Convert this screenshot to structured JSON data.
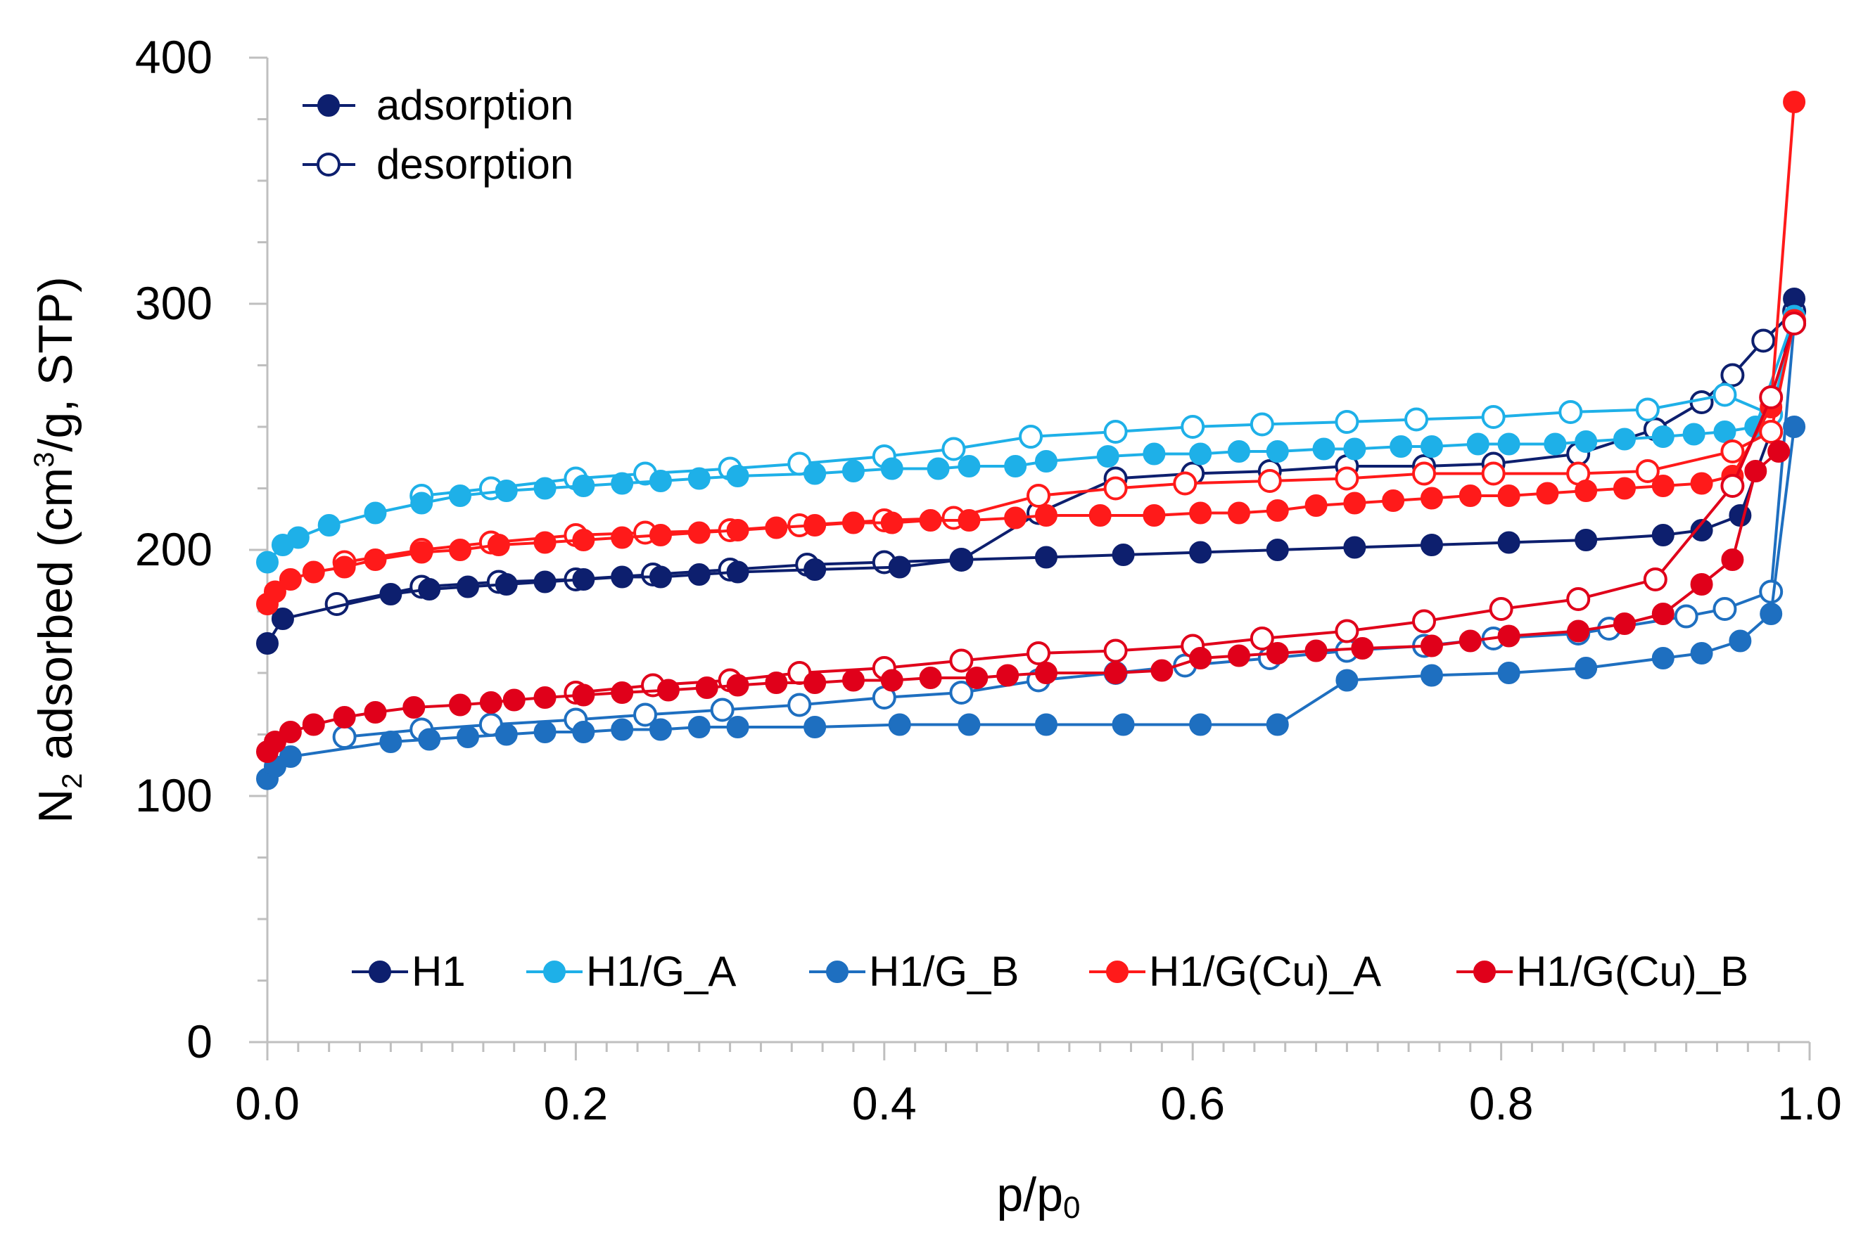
{
  "chart_data": {
    "type": "scatter",
    "xlabel": "p/p0",
    "ylabel": "N2 adsorbed (cm3/g, STP)",
    "ylabel_parts": {
      "n": "N",
      "sub": "2",
      "mid": " adsorbed (cm",
      "sup": "3",
      "end": "/g, STP)"
    },
    "xlabel_parts": {
      "main": "p/p",
      "sub": "0"
    },
    "xlim": [
      0,
      1.0
    ],
    "ylim": [
      0,
      400
    ],
    "x_ticks": [
      "0.0",
      "0.2",
      "0.4",
      "0.6",
      "0.8",
      "1.0"
    ],
    "y_ticks": [
      "0",
      "100",
      "200",
      "300",
      "400"
    ],
    "grid": false,
    "legend_branch": [
      {
        "label": "adsorption",
        "marker": "filled"
      },
      {
        "label": "desorption",
        "marker": "open"
      }
    ],
    "series": [
      {
        "name": "H1",
        "color": "#0D1F6E",
        "adsorption": [
          [
            0.0,
            162
          ],
          [
            0.01,
            172
          ],
          [
            0.08,
            182
          ],
          [
            0.105,
            184
          ],
          [
            0.13,
            185
          ],
          [
            0.155,
            186
          ],
          [
            0.18,
            187
          ],
          [
            0.205,
            188
          ],
          [
            0.23,
            189
          ],
          [
            0.255,
            189
          ],
          [
            0.28,
            190
          ],
          [
            0.305,
            191
          ],
          [
            0.355,
            192
          ],
          [
            0.41,
            193
          ],
          [
            0.45,
            196
          ],
          [
            0.505,
            197
          ],
          [
            0.555,
            198
          ],
          [
            0.605,
            199
          ],
          [
            0.655,
            200
          ],
          [
            0.705,
            201
          ],
          [
            0.755,
            202
          ],
          [
            0.805,
            203
          ],
          [
            0.855,
            204
          ],
          [
            0.905,
            206
          ],
          [
            0.93,
            208
          ],
          [
            0.955,
            214
          ],
          [
            0.975,
            248
          ],
          [
            0.99,
            302
          ]
        ],
        "desorption": [
          [
            0.99,
            297
          ],
          [
            0.97,
            285
          ],
          [
            0.95,
            271
          ],
          [
            0.93,
            260
          ],
          [
            0.9,
            249
          ],
          [
            0.85,
            239
          ],
          [
            0.795,
            235
          ],
          [
            0.75,
            234
          ],
          [
            0.7,
            234
          ],
          [
            0.65,
            232
          ],
          [
            0.6,
            231
          ],
          [
            0.55,
            229
          ],
          [
            0.5,
            215
          ],
          [
            0.45,
            196
          ],
          [
            0.4,
            195
          ],
          [
            0.35,
            194
          ],
          [
            0.3,
            192
          ],
          [
            0.25,
            190
          ],
          [
            0.2,
            188
          ],
          [
            0.15,
            187
          ],
          [
            0.1,
            185
          ],
          [
            0.045,
            178
          ]
        ]
      },
      {
        "name": "H1/G_A",
        "color": "#1EB0E8",
        "adsorption": [
          [
            0.0,
            195
          ],
          [
            0.01,
            202
          ],
          [
            0.02,
            205
          ],
          [
            0.04,
            210
          ],
          [
            0.07,
            215
          ],
          [
            0.1,
            219
          ],
          [
            0.125,
            222
          ],
          [
            0.155,
            224
          ],
          [
            0.18,
            225
          ],
          [
            0.205,
            226
          ],
          [
            0.23,
            227
          ],
          [
            0.255,
            228
          ],
          [
            0.28,
            229
          ],
          [
            0.305,
            230
          ],
          [
            0.355,
            231
          ],
          [
            0.38,
            232
          ],
          [
            0.405,
            233
          ],
          [
            0.435,
            233
          ],
          [
            0.455,
            234
          ],
          [
            0.485,
            234
          ],
          [
            0.505,
            236
          ],
          [
            0.545,
            238
          ],
          [
            0.575,
            239
          ],
          [
            0.605,
            239
          ],
          [
            0.63,
            240
          ],
          [
            0.655,
            240
          ],
          [
            0.685,
            241
          ],
          [
            0.705,
            241
          ],
          [
            0.735,
            242
          ],
          [
            0.755,
            242
          ],
          [
            0.785,
            243
          ],
          [
            0.805,
            243
          ],
          [
            0.835,
            243
          ],
          [
            0.855,
            244
          ],
          [
            0.88,
            245
          ],
          [
            0.905,
            246
          ],
          [
            0.925,
            247
          ],
          [
            0.945,
            248
          ],
          [
            0.965,
            250
          ],
          [
            0.99,
            295
          ]
        ],
        "desorption": [
          [
            0.99,
            293
          ],
          [
            0.975,
            255
          ],
          [
            0.945,
            263
          ],
          [
            0.895,
            257
          ],
          [
            0.845,
            256
          ],
          [
            0.795,
            254
          ],
          [
            0.745,
            253
          ],
          [
            0.7,
            252
          ],
          [
            0.645,
            251
          ],
          [
            0.6,
            250
          ],
          [
            0.55,
            248
          ],
          [
            0.495,
            246
          ],
          [
            0.445,
            241
          ],
          [
            0.4,
            238
          ],
          [
            0.345,
            235
          ],
          [
            0.3,
            233
          ],
          [
            0.245,
            231
          ],
          [
            0.2,
            229
          ],
          [
            0.145,
            225
          ],
          [
            0.1,
            222
          ]
        ]
      },
      {
        "name": "H1/G_B",
        "color": "#1E6FC0",
        "adsorption": [
          [
            0.0,
            107
          ],
          [
            0.005,
            112
          ],
          [
            0.015,
            116
          ],
          [
            0.08,
            122
          ],
          [
            0.105,
            123
          ],
          [
            0.13,
            124
          ],
          [
            0.155,
            125
          ],
          [
            0.18,
            126
          ],
          [
            0.205,
            126
          ],
          [
            0.23,
            127
          ],
          [
            0.255,
            127
          ],
          [
            0.28,
            128
          ],
          [
            0.305,
            128
          ],
          [
            0.355,
            128
          ],
          [
            0.41,
            129
          ],
          [
            0.455,
            129
          ],
          [
            0.505,
            129
          ],
          [
            0.555,
            129
          ],
          [
            0.605,
            129
          ],
          [
            0.655,
            129
          ],
          [
            0.7,
            147
          ],
          [
            0.755,
            149
          ],
          [
            0.805,
            150
          ],
          [
            0.855,
            152
          ],
          [
            0.905,
            156
          ],
          [
            0.93,
            158
          ],
          [
            0.955,
            163
          ],
          [
            0.975,
            174
          ],
          [
            0.99,
            250
          ]
        ],
        "desorption": [
          [
            0.99,
            292
          ],
          [
            0.975,
            183
          ],
          [
            0.945,
            176
          ],
          [
            0.92,
            173
          ],
          [
            0.87,
            168
          ],
          [
            0.85,
            166
          ],
          [
            0.795,
            164
          ],
          [
            0.75,
            161
          ],
          [
            0.7,
            159
          ],
          [
            0.65,
            156
          ],
          [
            0.595,
            153
          ],
          [
            0.55,
            150
          ],
          [
            0.5,
            147
          ],
          [
            0.45,
            142
          ],
          [
            0.4,
            140
          ],
          [
            0.345,
            137
          ],
          [
            0.295,
            135
          ],
          [
            0.245,
            133
          ],
          [
            0.2,
            131
          ],
          [
            0.145,
            129
          ],
          [
            0.1,
            127
          ],
          [
            0.05,
            124
          ]
        ]
      },
      {
        "name": "H1/G(Cu)_A",
        "color": "#FF1A1A",
        "adsorption": [
          [
            0.0,
            178
          ],
          [
            0.005,
            183
          ],
          [
            0.015,
            188
          ],
          [
            0.03,
            191
          ],
          [
            0.05,
            193
          ],
          [
            0.07,
            196
          ],
          [
            0.1,
            199
          ],
          [
            0.125,
            200
          ],
          [
            0.15,
            202
          ],
          [
            0.18,
            203
          ],
          [
            0.205,
            204
          ],
          [
            0.23,
            205
          ],
          [
            0.255,
            206
          ],
          [
            0.28,
            207
          ],
          [
            0.305,
            208
          ],
          [
            0.33,
            209
          ],
          [
            0.355,
            210
          ],
          [
            0.38,
            211
          ],
          [
            0.405,
            211
          ],
          [
            0.43,
            212
          ],
          [
            0.455,
            212
          ],
          [
            0.485,
            213
          ],
          [
            0.505,
            214
          ],
          [
            0.54,
            214
          ],
          [
            0.575,
            214
          ],
          [
            0.605,
            215
          ],
          [
            0.63,
            215
          ],
          [
            0.655,
            216
          ],
          [
            0.68,
            218
          ],
          [
            0.705,
            219
          ],
          [
            0.73,
            220
          ],
          [
            0.755,
            221
          ],
          [
            0.78,
            222
          ],
          [
            0.805,
            222
          ],
          [
            0.83,
            223
          ],
          [
            0.855,
            224
          ],
          [
            0.88,
            225
          ],
          [
            0.905,
            226
          ],
          [
            0.93,
            227
          ],
          [
            0.95,
            230
          ],
          [
            0.975,
            258
          ],
          [
            0.99,
            382
          ]
        ],
        "desorption": [
          [
            0.99,
            293
          ],
          [
            0.975,
            248
          ],
          [
            0.95,
            240
          ],
          [
            0.895,
            232
          ],
          [
            0.85,
            231
          ],
          [
            0.795,
            231
          ],
          [
            0.75,
            231
          ],
          [
            0.7,
            229
          ],
          [
            0.65,
            228
          ],
          [
            0.595,
            227
          ],
          [
            0.55,
            225
          ],
          [
            0.5,
            222
          ],
          [
            0.445,
            213
          ],
          [
            0.4,
            212
          ],
          [
            0.345,
            210
          ],
          [
            0.3,
            208
          ],
          [
            0.245,
            207
          ],
          [
            0.2,
            206
          ],
          [
            0.145,
            203
          ],
          [
            0.1,
            200
          ],
          [
            0.05,
            195
          ]
        ]
      },
      {
        "name": "H1/G(Cu)_B",
        "color": "#E0001A",
        "adsorption": [
          [
            0.0,
            118
          ],
          [
            0.005,
            122
          ],
          [
            0.015,
            126
          ],
          [
            0.03,
            129
          ],
          [
            0.05,
            132
          ],
          [
            0.07,
            134
          ],
          [
            0.095,
            136
          ],
          [
            0.125,
            137
          ],
          [
            0.145,
            138
          ],
          [
            0.16,
            139
          ],
          [
            0.18,
            140
          ],
          [
            0.205,
            141
          ],
          [
            0.23,
            142
          ],
          [
            0.26,
            143
          ],
          [
            0.285,
            144
          ],
          [
            0.305,
            145
          ],
          [
            0.33,
            146
          ],
          [
            0.355,
            146
          ],
          [
            0.38,
            147
          ],
          [
            0.405,
            147
          ],
          [
            0.43,
            148
          ],
          [
            0.46,
            148
          ],
          [
            0.48,
            149
          ],
          [
            0.505,
            150
          ],
          [
            0.55,
            150
          ],
          [
            0.58,
            151
          ],
          [
            0.605,
            156
          ],
          [
            0.63,
            157
          ],
          [
            0.655,
            158
          ],
          [
            0.68,
            159
          ],
          [
            0.71,
            160
          ],
          [
            0.755,
            161
          ],
          [
            0.78,
            163
          ],
          [
            0.805,
            165
          ],
          [
            0.85,
            167
          ],
          [
            0.88,
            170
          ],
          [
            0.905,
            174
          ],
          [
            0.93,
            186
          ],
          [
            0.95,
            196
          ],
          [
            0.965,
            232
          ],
          [
            0.98,
            240
          ]
        ],
        "desorption": [
          [
            0.99,
            292
          ],
          [
            0.975,
            262
          ],
          [
            0.95,
            226
          ],
          [
            0.9,
            188
          ],
          [
            0.85,
            180
          ],
          [
            0.8,
            176
          ],
          [
            0.75,
            171
          ],
          [
            0.7,
            167
          ],
          [
            0.645,
            164
          ],
          [
            0.6,
            161
          ],
          [
            0.55,
            159
          ],
          [
            0.5,
            158
          ],
          [
            0.45,
            155
          ],
          [
            0.4,
            152
          ],
          [
            0.345,
            150
          ],
          [
            0.3,
            147
          ],
          [
            0.25,
            145
          ],
          [
            0.2,
            142
          ]
        ]
      }
    ]
  }
}
